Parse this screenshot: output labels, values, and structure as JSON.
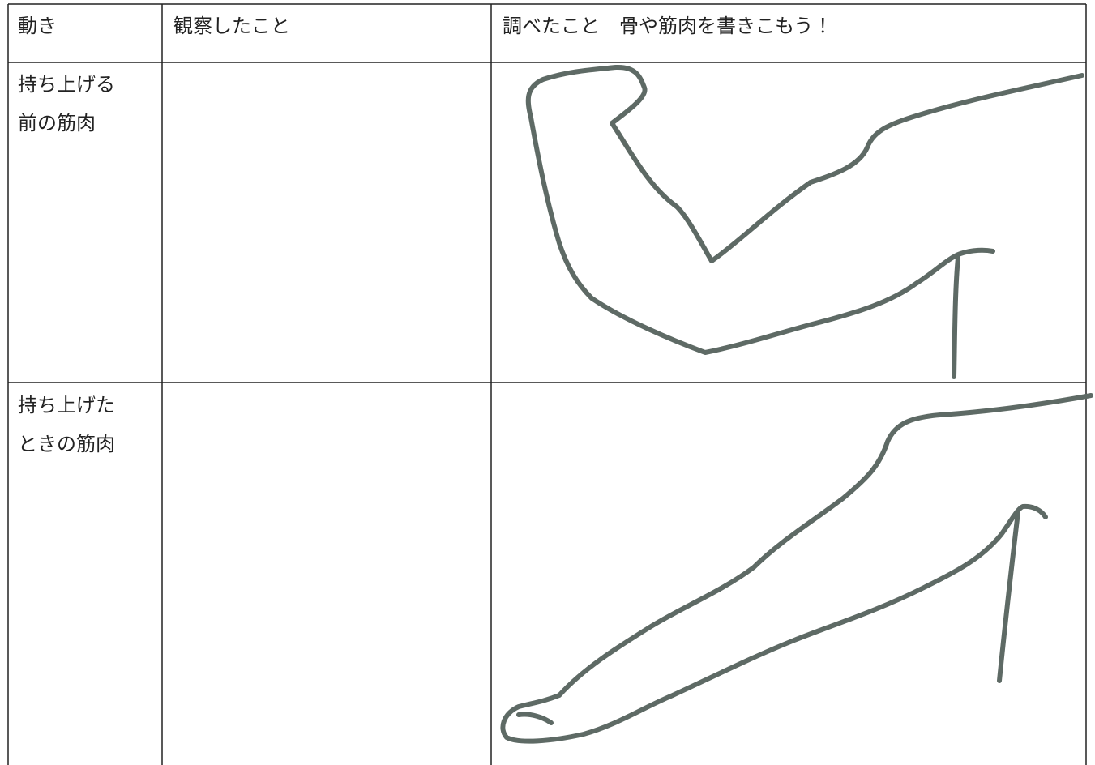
{
  "table": {
    "header": [
      "動き",
      "観察したこと",
      "調べたこと　骨や筋肉を書きこもう！"
    ],
    "rows": [
      {
        "label": [
          "持ち上げる",
          "前の筋肉"
        ]
      },
      {
        "label": [
          "持ち上げた",
          "ときの筋肉"
        ]
      }
    ]
  }
}
